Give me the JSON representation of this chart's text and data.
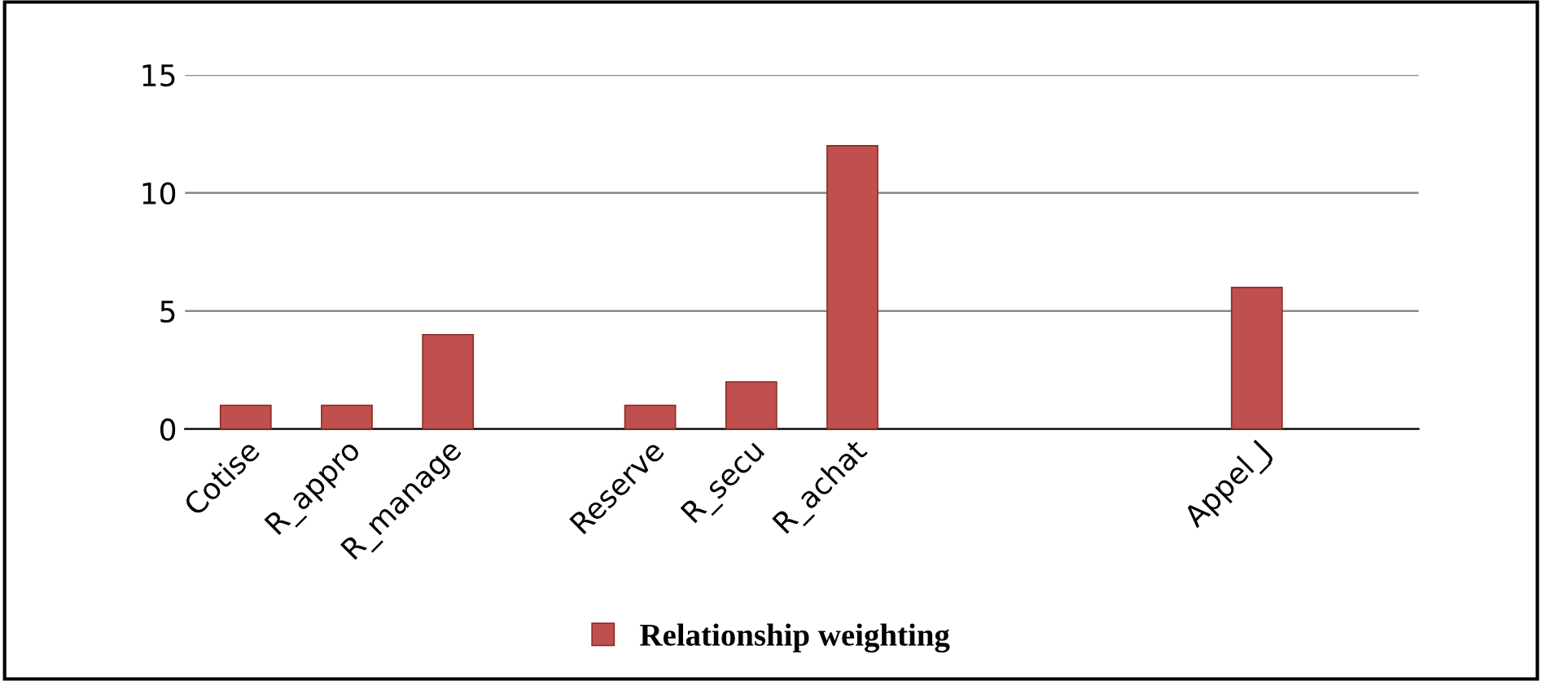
{
  "chart_data": {
    "type": "bar",
    "categories": [
      "Cotise",
      "R_appro",
      "R_manage",
      null,
      "Reserve",
      "R_secu",
      "R_achat",
      null,
      null,
      null,
      "Appel_J",
      null
    ],
    "series": [
      {
        "name": "Relationship weighting",
        "color": "#c0504d",
        "values": [
          1,
          1,
          4,
          null,
          1,
          2,
          12,
          null,
          null,
          null,
          6,
          null
        ]
      }
    ],
    "ylim": [
      0,
      15
    ],
    "yticks": [
      0,
      5,
      10,
      15
    ],
    "grid": "y",
    "legend": "bottom"
  }
}
